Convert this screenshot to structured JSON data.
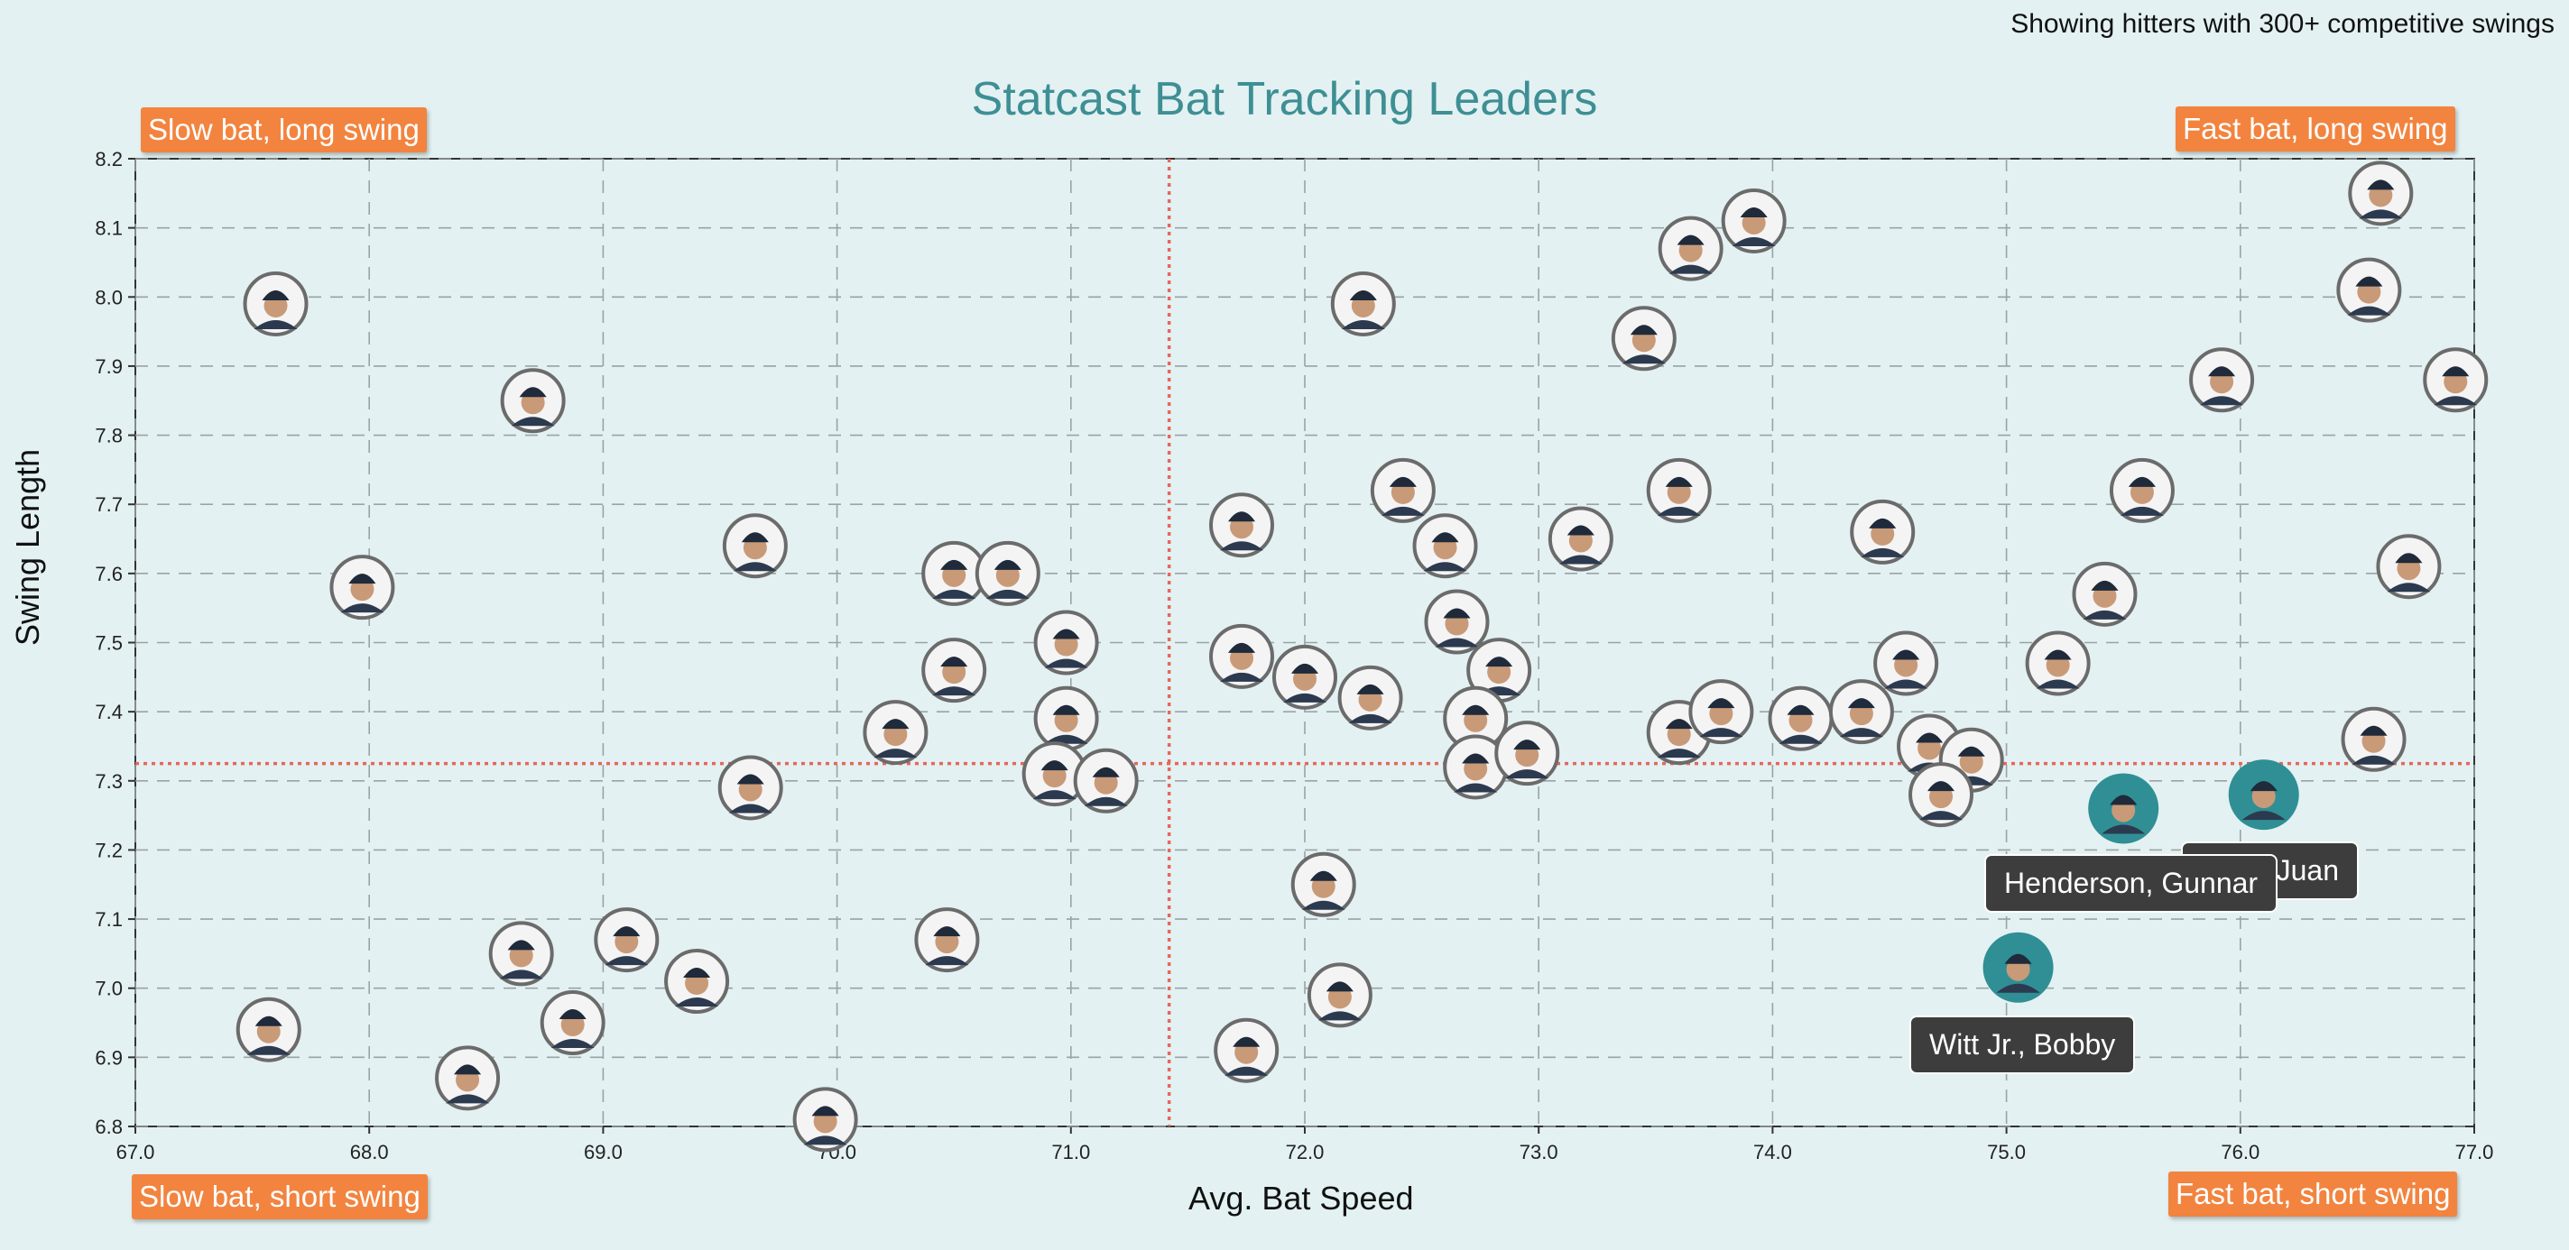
{
  "header": {
    "note": "Showing hitters with 300+ competitive swings",
    "title": "Statcast Bat Tracking Leaders"
  },
  "quadrants": {
    "top_left": "Slow bat, long swing",
    "top_right": "Fast bat, long swing",
    "bottom_left": "Slow bat, short swing",
    "bottom_right": "Fast bat, short swing"
  },
  "colors": {
    "background": "#e3f1f2",
    "title": "#3e8f94",
    "quadrant_label": "#f2843f",
    "highlight": "#2f8f95",
    "reference_line": "#e8665c",
    "tooltip": "#3d3d3d"
  },
  "tooltips": [
    {
      "label": "Henderson, Gunnar",
      "x": 75.5,
      "y": 7.26
    },
    {
      "label": "Soto, Juan",
      "x": 76.1,
      "y": 7.28
    },
    {
      "label": "Witt Jr., Bobby",
      "x": 75.05,
      "y": 7.03
    }
  ],
  "chart_data": {
    "type": "scatter",
    "xlabel": "Avg. Bat Speed",
    "ylabel": "Swing Length",
    "xlim": [
      67.0,
      77.0
    ],
    "ylim": [
      6.8,
      8.2
    ],
    "x_ticks": [
      "67.0",
      "68.0",
      "69.0",
      "70.0",
      "71.0",
      "72.0",
      "73.0",
      "74.0",
      "75.0",
      "76.0",
      "77.0"
    ],
    "y_ticks": [
      "6.8",
      "6.9",
      "7.0",
      "7.1",
      "7.2",
      "7.3",
      "7.4",
      "7.5",
      "7.6",
      "7.7",
      "7.8",
      "7.9",
      "8.0",
      "8.1",
      "8.2"
    ],
    "grid": true,
    "reference_lines": {
      "x": 71.42,
      "y": 7.325
    },
    "points": [
      {
        "x": 67.6,
        "y": 7.99
      },
      {
        "x": 68.7,
        "y": 7.85
      },
      {
        "x": 67.97,
        "y": 7.58
      },
      {
        "x": 69.65,
        "y": 7.64
      },
      {
        "x": 69.63,
        "y": 7.29
      },
      {
        "x": 68.65,
        "y": 7.05
      },
      {
        "x": 69.1,
        "y": 7.07
      },
      {
        "x": 69.4,
        "y": 7.01
      },
      {
        "x": 68.87,
        "y": 6.95
      },
      {
        "x": 67.57,
        "y": 6.94
      },
      {
        "x": 68.42,
        "y": 6.87
      },
      {
        "x": 69.95,
        "y": 6.81
      },
      {
        "x": 70.25,
        "y": 7.37
      },
      {
        "x": 70.5,
        "y": 7.6
      },
      {
        "x": 70.73,
        "y": 7.6
      },
      {
        "x": 70.5,
        "y": 7.46
      },
      {
        "x": 70.47,
        "y": 7.07
      },
      {
        "x": 70.98,
        "y": 7.5
      },
      {
        "x": 70.98,
        "y": 7.39
      },
      {
        "x": 70.93,
        "y": 7.31
      },
      {
        "x": 71.15,
        "y": 7.3
      },
      {
        "x": 71.73,
        "y": 7.67
      },
      {
        "x": 71.73,
        "y": 7.48
      },
      {
        "x": 72.0,
        "y": 7.45
      },
      {
        "x": 72.28,
        "y": 7.42
      },
      {
        "x": 72.08,
        "y": 7.15
      },
      {
        "x": 72.15,
        "y": 6.99
      },
      {
        "x": 71.75,
        "y": 6.91
      },
      {
        "x": 72.25,
        "y": 7.99
      },
      {
        "x": 72.42,
        "y": 7.72
      },
      {
        "x": 72.6,
        "y": 7.64
      },
      {
        "x": 72.65,
        "y": 7.53
      },
      {
        "x": 72.83,
        "y": 7.46
      },
      {
        "x": 72.73,
        "y": 7.39
      },
      {
        "x": 72.73,
        "y": 7.32
      },
      {
        "x": 72.95,
        "y": 7.34
      },
      {
        "x": 73.18,
        "y": 7.65
      },
      {
        "x": 73.45,
        "y": 7.94
      },
      {
        "x": 73.65,
        "y": 8.07
      },
      {
        "x": 73.92,
        "y": 8.11
      },
      {
        "x": 73.6,
        "y": 7.72
      },
      {
        "x": 73.6,
        "y": 7.37
      },
      {
        "x": 73.78,
        "y": 7.4
      },
      {
        "x": 74.12,
        "y": 7.39
      },
      {
        "x": 74.38,
        "y": 7.4
      },
      {
        "x": 74.47,
        "y": 7.66
      },
      {
        "x": 74.57,
        "y": 7.47
      },
      {
        "x": 74.67,
        "y": 7.35
      },
      {
        "x": 74.85,
        "y": 7.33
      },
      {
        "x": 74.72,
        "y": 7.28
      },
      {
        "x": 75.22,
        "y": 7.47
      },
      {
        "x": 75.42,
        "y": 7.57
      },
      {
        "x": 75.58,
        "y": 7.72
      },
      {
        "x": 75.92,
        "y": 7.88
      },
      {
        "x": 76.6,
        "y": 8.15
      },
      {
        "x": 76.55,
        "y": 8.01
      },
      {
        "x": 76.92,
        "y": 7.88
      },
      {
        "x": 76.72,
        "y": 7.61
      },
      {
        "x": 76.57,
        "y": 7.36
      },
      {
        "x": 75.5,
        "y": 7.26,
        "highlight": true
      },
      {
        "x": 76.1,
        "y": 7.28,
        "highlight": true
      },
      {
        "x": 75.05,
        "y": 7.03,
        "highlight": true
      }
    ]
  }
}
